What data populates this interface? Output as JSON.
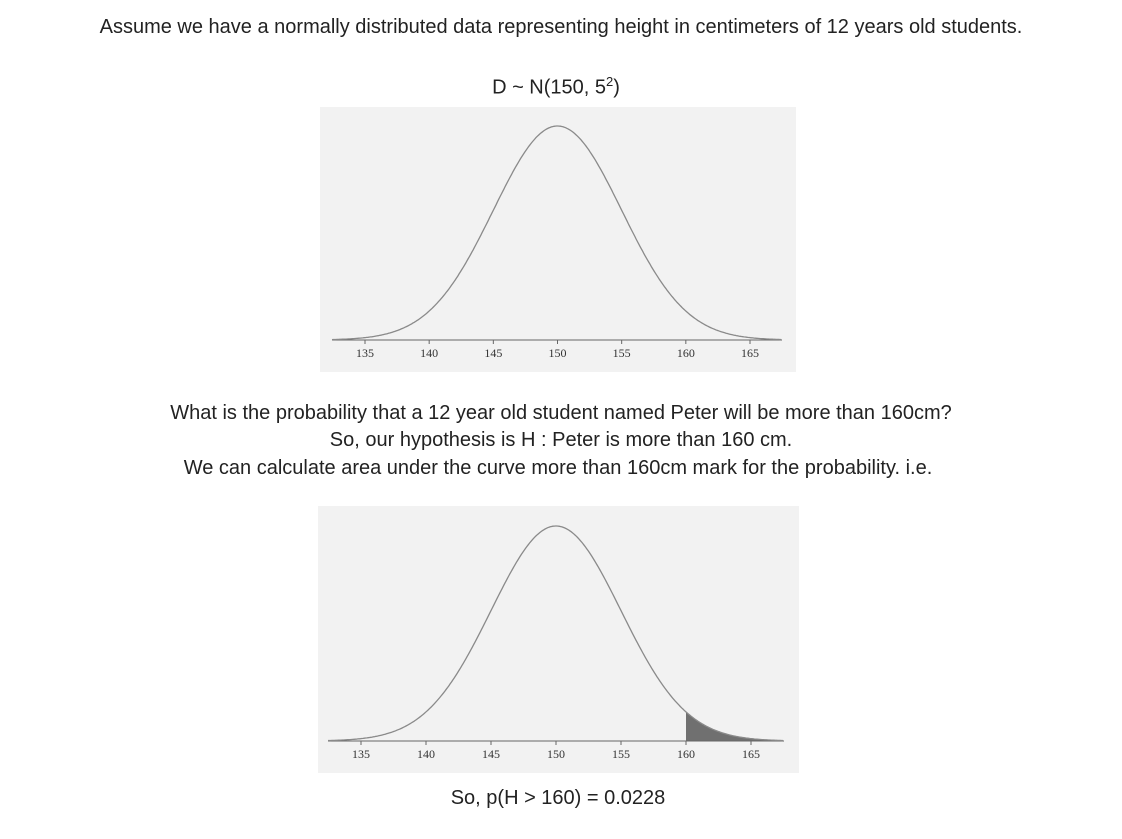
{
  "intro": "Assume we have a normally distributed data representing height in centimeters of 12 years old students.",
  "distribution": {
    "prefix": "D ~ N(150, 5",
    "exponent": "2",
    "suffix": ")"
  },
  "question": {
    "line1": "What is the probability that a 12 year old student named Peter will be more than 160cm?",
    "line2": "So, our hypothesis is H : Peter is more than 160 cm.",
    "line3": "We can calculate area under the curve more than 160cm mark for the probability. i.e."
  },
  "result": "So, p(H > 160) = 0.0228",
  "colors": {
    "panel": "#f2f2f2",
    "curve": "#8a8a8a",
    "shade": "#707070",
    "axis": "#666666"
  },
  "chart_data": [
    {
      "type": "area",
      "distribution": "normal",
      "mean": 150,
      "sd": 5,
      "xlim": [
        133,
        167
      ],
      "ticks": [
        "135",
        "140",
        "145",
        "150",
        "155",
        "160",
        "165"
      ],
      "shaded": null
    },
    {
      "type": "area",
      "distribution": "normal",
      "mean": 150,
      "sd": 5,
      "xlim": [
        133,
        167
      ],
      "ticks": [
        "135",
        "140",
        "145",
        "150",
        "155",
        "160",
        "165"
      ],
      "shaded": {
        "from": 160,
        "to": 167
      }
    }
  ]
}
